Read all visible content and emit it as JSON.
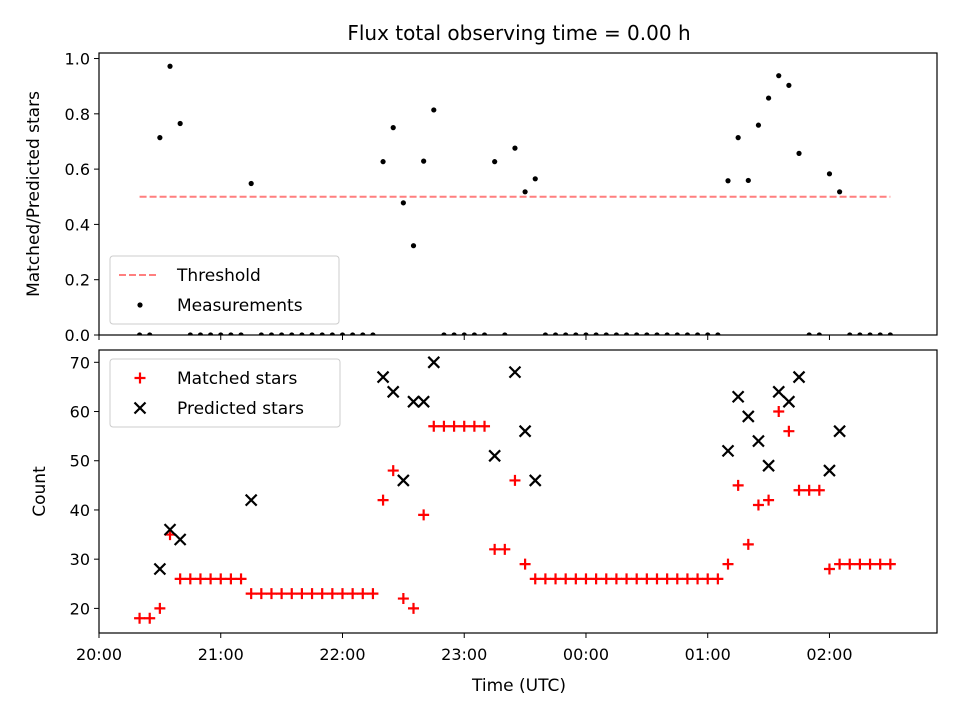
{
  "chart_data": {
    "title": "Flux total observing time = 0.00 h",
    "xlabel": "Time (UTC)",
    "x_ticks": [
      "20:00",
      "21:00",
      "22:00",
      "23:00",
      "00:00",
      "01:00",
      "02:00"
    ],
    "panels": [
      {
        "type": "scatter",
        "ylabel": "Matched/Predicted stars",
        "ylim": [
          0.0,
          1.02
        ],
        "y_ticks": [
          "0.0",
          "0.2",
          "0.4",
          "0.6",
          "0.8",
          "1.0"
        ],
        "legend_position": "lower-left",
        "threshold": {
          "name": "Threshold",
          "value": 0.5,
          "x_start": "20:20",
          "x_end": "02:30",
          "color": "#ff7f7f",
          "style": "dashed"
        },
        "series": [
          {
            "name": "Measurements",
            "marker": "dot",
            "color": "#000000",
            "points": [
              [
                "20:20",
                0.0
              ],
              [
                "20:25",
                0.0
              ],
              [
                "20:30",
                0.714
              ],
              [
                "20:35",
                0.972
              ],
              [
                "20:40",
                0.765
              ],
              [
                "20:45",
                0.0
              ],
              [
                "20:50",
                0.0
              ],
              [
                "20:55",
                0.0
              ],
              [
                "21:00",
                0.0
              ],
              [
                "21:05",
                0.0
              ],
              [
                "21:10",
                0.0
              ],
              [
                "21:15",
                0.548
              ],
              [
                "21:20",
                0.0
              ],
              [
                "21:25",
                0.0
              ],
              [
                "21:30",
                0.0
              ],
              [
                "21:35",
                0.0
              ],
              [
                "21:40",
                0.0
              ],
              [
                "21:45",
                0.0
              ],
              [
                "21:50",
                0.0
              ],
              [
                "21:55",
                0.0
              ],
              [
                "22:00",
                0.0
              ],
              [
                "22:05",
                0.0
              ],
              [
                "22:10",
                0.0
              ],
              [
                "22:15",
                0.0
              ],
              [
                "22:20",
                0.627
              ],
              [
                "22:25",
                0.75
              ],
              [
                "22:30",
                0.478
              ],
              [
                "22:35",
                0.323
              ],
              [
                "22:40",
                0.629
              ],
              [
                "22:45",
                0.814
              ],
              [
                "22:50",
                0.0
              ],
              [
                "22:55",
                0.0
              ],
              [
                "23:00",
                0.0
              ],
              [
                "23:05",
                0.0
              ],
              [
                "23:10",
                0.0
              ],
              [
                "23:15",
                0.627
              ],
              [
                "23:20",
                0.0
              ],
              [
                "23:25",
                0.676
              ],
              [
                "23:30",
                0.518
              ],
              [
                "23:35",
                0.565
              ],
              [
                "23:40",
                0.0
              ],
              [
                "23:45",
                0.0
              ],
              [
                "23:50",
                0.0
              ],
              [
                "23:55",
                0.0
              ],
              [
                "00:00",
                0.0
              ],
              [
                "00:05",
                0.0
              ],
              [
                "00:10",
                0.0
              ],
              [
                "00:15",
                0.0
              ],
              [
                "00:20",
                0.0
              ],
              [
                "00:25",
                0.0
              ],
              [
                "00:30",
                0.0
              ],
              [
                "00:35",
                0.0
              ],
              [
                "00:40",
                0.0
              ],
              [
                "00:45",
                0.0
              ],
              [
                "00:50",
                0.0
              ],
              [
                "00:55",
                0.0
              ],
              [
                "01:00",
                0.0
              ],
              [
                "01:05",
                0.0
              ],
              [
                "01:10",
                0.558
              ],
              [
                "01:15",
                0.714
              ],
              [
                "01:20",
                0.559
              ],
              [
                "01:25",
                0.759
              ],
              [
                "01:30",
                0.857
              ],
              [
                "01:35",
                0.938
              ],
              [
                "01:40",
                0.903
              ],
              [
                "01:45",
                0.657
              ],
              [
                "01:50",
                0.0
              ],
              [
                "01:55",
                0.0
              ],
              [
                "02:00",
                0.583
              ],
              [
                "02:05",
                0.518
              ],
              [
                "02:10",
                0.0
              ],
              [
                "02:15",
                0.0
              ],
              [
                "02:20",
                0.0
              ],
              [
                "02:25",
                0.0
              ],
              [
                "02:30",
                0.0
              ]
            ]
          }
        ]
      },
      {
        "type": "scatter",
        "ylabel": "Count",
        "ylim": [
          15,
          72.5
        ],
        "y_ticks": [
          "20",
          "30",
          "40",
          "50",
          "60",
          "70"
        ],
        "legend_position": "upper-left",
        "series": [
          {
            "name": "Matched stars",
            "marker": "plus",
            "color": "#ff0000",
            "points": [
              [
                "20:20",
                18
              ],
              [
                "20:25",
                18
              ],
              [
                "20:30",
                20
              ],
              [
                "20:35",
                35
              ],
              [
                "20:40",
                26
              ],
              [
                "20:45",
                26
              ],
              [
                "20:50",
                26
              ],
              [
                "20:55",
                26
              ],
              [
                "21:00",
                26
              ],
              [
                "21:05",
                26
              ],
              [
                "21:10",
                26
              ],
              [
                "21:15",
                23
              ],
              [
                "21:20",
                23
              ],
              [
                "21:25",
                23
              ],
              [
                "21:30",
                23
              ],
              [
                "21:35",
                23
              ],
              [
                "21:40",
                23
              ],
              [
                "21:45",
                23
              ],
              [
                "21:50",
                23
              ],
              [
                "21:55",
                23
              ],
              [
                "22:00",
                23
              ],
              [
                "22:05",
                23
              ],
              [
                "22:10",
                23
              ],
              [
                "22:15",
                23
              ],
              [
                "22:20",
                42
              ],
              [
                "22:25",
                48
              ],
              [
                "22:30",
                22
              ],
              [
                "22:35",
                20
              ],
              [
                "22:40",
                39
              ],
              [
                "22:45",
                57
              ],
              [
                "22:50",
                57
              ],
              [
                "22:55",
                57
              ],
              [
                "23:00",
                57
              ],
              [
                "23:05",
                57
              ],
              [
                "23:10",
                57
              ],
              [
                "23:15",
                32
              ],
              [
                "23:20",
                32
              ],
              [
                "23:25",
                46
              ],
              [
                "23:30",
                29
              ],
              [
                "23:35",
                26
              ],
              [
                "23:40",
                26
              ],
              [
                "23:45",
                26
              ],
              [
                "23:50",
                26
              ],
              [
                "23:55",
                26
              ],
              [
                "00:00",
                26
              ],
              [
                "00:05",
                26
              ],
              [
                "00:10",
                26
              ],
              [
                "00:15",
                26
              ],
              [
                "00:20",
                26
              ],
              [
                "00:25",
                26
              ],
              [
                "00:30",
                26
              ],
              [
                "00:35",
                26
              ],
              [
                "00:40",
                26
              ],
              [
                "00:45",
                26
              ],
              [
                "00:50",
                26
              ],
              [
                "00:55",
                26
              ],
              [
                "01:00",
                26
              ],
              [
                "01:05",
                26
              ],
              [
                "01:10",
                29
              ],
              [
                "01:15",
                45
              ],
              [
                "01:20",
                33
              ],
              [
                "01:25",
                41
              ],
              [
                "01:30",
                42
              ],
              [
                "01:35",
                60
              ],
              [
                "01:40",
                56
              ],
              [
                "01:45",
                44
              ],
              [
                "01:50",
                44
              ],
              [
                "01:55",
                44
              ],
              [
                "02:00",
                28
              ],
              [
                "02:05",
                29
              ],
              [
                "02:10",
                29
              ],
              [
                "02:15",
                29
              ],
              [
                "02:20",
                29
              ],
              [
                "02:25",
                29
              ],
              [
                "02:30",
                29
              ]
            ]
          },
          {
            "name": "Predicted stars",
            "marker": "x",
            "color": "#000000",
            "points": [
              [
                "20:30",
                28
              ],
              [
                "20:35",
                36
              ],
              [
                "20:40",
                34
              ],
              [
                "21:15",
                42
              ],
              [
                "22:20",
                67
              ],
              [
                "22:25",
                64
              ],
              [
                "22:30",
                46
              ],
              [
                "22:35",
                62
              ],
              [
                "22:40",
                62
              ],
              [
                "22:45",
                70
              ],
              [
                "23:15",
                51
              ],
              [
                "23:25",
                68
              ],
              [
                "23:30",
                56
              ],
              [
                "23:35",
                46
              ],
              [
                "01:10",
                52
              ],
              [
                "01:15",
                63
              ],
              [
                "01:20",
                59
              ],
              [
                "01:25",
                54
              ],
              [
                "01:30",
                49
              ],
              [
                "01:35",
                64
              ],
              [
                "01:40",
                62
              ],
              [
                "01:45",
                67
              ],
              [
                "02:00",
                48
              ],
              [
                "02:05",
                56
              ]
            ]
          }
        ]
      }
    ]
  }
}
